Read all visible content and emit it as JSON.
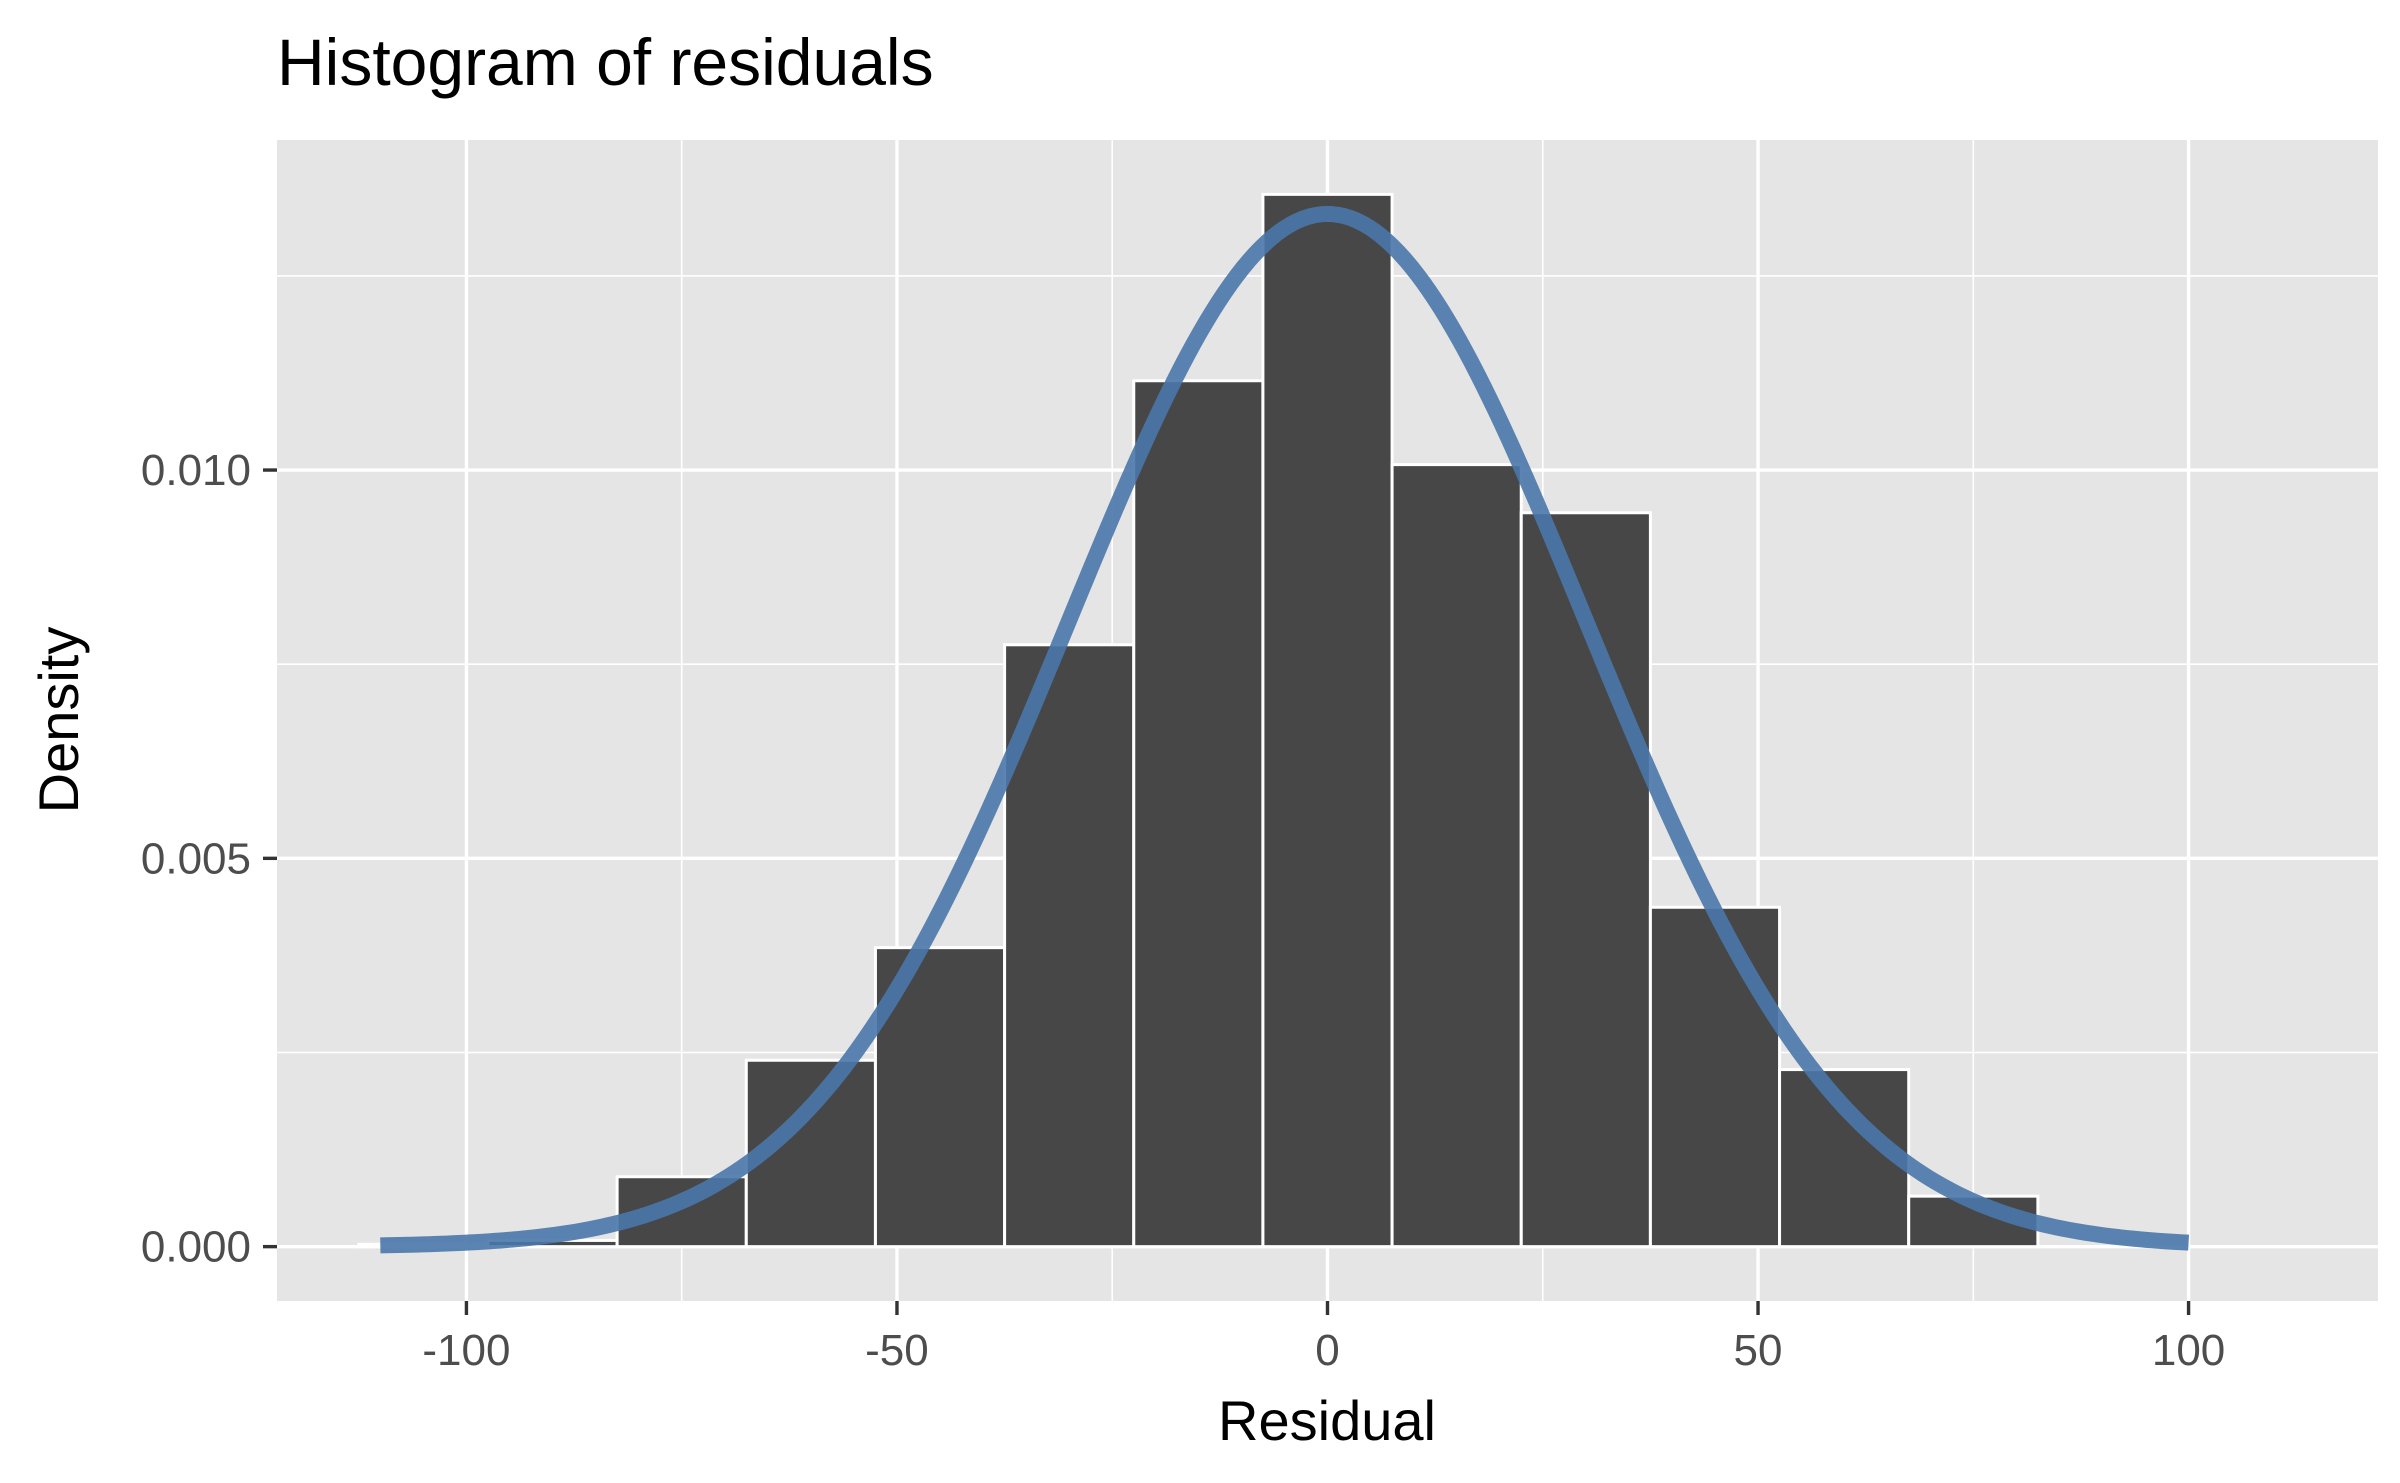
{
  "chart_data": {
    "type": "bar",
    "title": "Histogram of residuals",
    "xlabel": "Residual",
    "ylabel": "Density",
    "xlim": [
      -122,
      122
    ],
    "ylim": [
      -0.0007,
      0.01425
    ],
    "x_ticks": [
      -100,
      -50,
      0,
      50,
      100
    ],
    "x_tick_labels": [
      "-100",
      "-50",
      "0",
      "50",
      "100"
    ],
    "y_ticks": [
      0.0,
      0.005,
      0.01
    ],
    "y_tick_labels": [
      "0.000",
      "0.005",
      "0.010"
    ],
    "x_minor_gridlines": [
      -75,
      -25,
      25,
      75
    ],
    "y_minor_gridlines": [
      0.0025,
      0.0075,
      0.0125
    ],
    "grid": true,
    "bins": [
      {
        "start": -112.5,
        "end": -97.5,
        "density": 3e-05
      },
      {
        "start": -97.5,
        "end": -82.5,
        "density": 8e-05
      },
      {
        "start": -82.5,
        "end": -67.5,
        "density": 0.0009
      },
      {
        "start": -67.5,
        "end": -52.5,
        "density": 0.0024
      },
      {
        "start": -52.5,
        "end": -37.5,
        "density": 0.00385
      },
      {
        "start": -37.5,
        "end": -22.5,
        "density": 0.00775
      },
      {
        "start": -22.5,
        "end": -7.5,
        "density": 0.01115
      },
      {
        "start": -7.5,
        "end": 7.5,
        "density": 0.01355
      },
      {
        "start": 7.5,
        "end": 22.5,
        "density": 0.01007
      },
      {
        "start": 22.5,
        "end": 37.5,
        "density": 0.00945
      },
      {
        "start": 37.5,
        "end": 52.5,
        "density": 0.00437
      },
      {
        "start": 52.5,
        "end": 67.5,
        "density": 0.00228
      },
      {
        "start": 67.5,
        "end": 82.5,
        "density": 0.00065
      }
    ],
    "normal_curve": {
      "mean": 0,
      "sd": 30,
      "x_range": [
        -110,
        100
      ]
    },
    "colors": {
      "panel_background": "#e5e5e5",
      "gridline": "#ffffff",
      "bar_fill": "#474747",
      "bar_outline": "#ffffff",
      "curve": "#4a77aa"
    }
  }
}
